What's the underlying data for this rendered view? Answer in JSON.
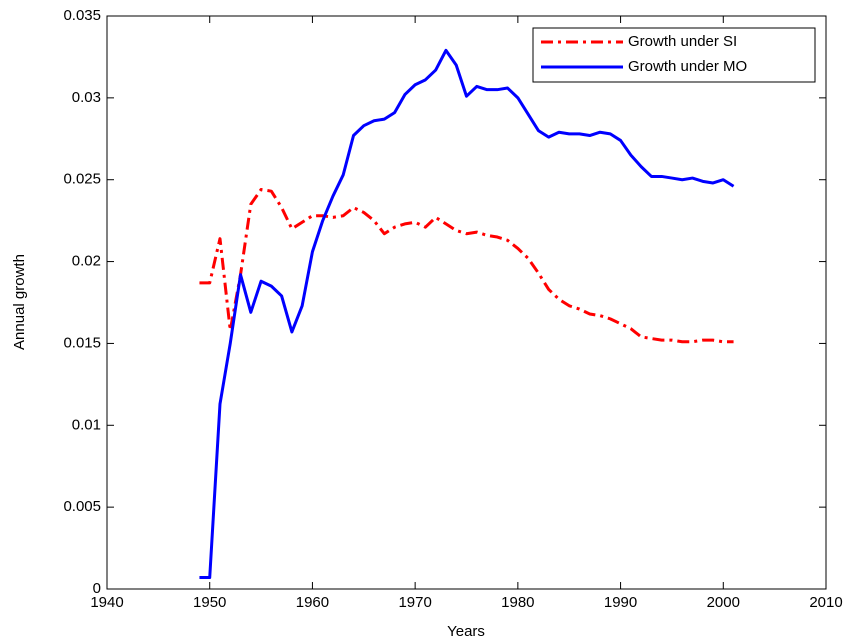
{
  "chart_data": {
    "type": "line",
    "xlabel": "Years",
    "ylabel": "Annual growth",
    "x": [
      1949,
      1950,
      1951,
      1952,
      1953,
      1954,
      1955,
      1956,
      1957,
      1958,
      1959,
      1960,
      1961,
      1962,
      1963,
      1964,
      1965,
      1966,
      1967,
      1968,
      1969,
      1970,
      1971,
      1972,
      1973,
      1974,
      1975,
      1976,
      1977,
      1978,
      1979,
      1980,
      1981,
      1982,
      1983,
      1984,
      1985,
      1986,
      1987,
      1988,
      1989,
      1990,
      1991,
      1992,
      1993,
      1994,
      1995,
      1996,
      1997,
      1998,
      1999,
      2000,
      2001
    ],
    "series": [
      {
        "name": "Growth under SI",
        "color": "#ff0000",
        "line_style": "dashdot",
        "values": [
          0.0187,
          0.0187,
          0.0214,
          0.0158,
          0.0192,
          0.0235,
          0.0244,
          0.0243,
          0.0233,
          0.022,
          0.0224,
          0.0228,
          0.0228,
          0.0227,
          0.0228,
          0.0233,
          0.023,
          0.0225,
          0.0217,
          0.0221,
          0.0223,
          0.0224,
          0.0221,
          0.0227,
          0.0223,
          0.0219,
          0.0217,
          0.0218,
          0.0216,
          0.0215,
          0.0213,
          0.0208,
          0.0202,
          0.0193,
          0.0183,
          0.0177,
          0.0173,
          0.0171,
          0.0168,
          0.0167,
          0.0165,
          0.0162,
          0.0159,
          0.0154,
          0.0153,
          0.0152,
          0.0152,
          0.0151,
          0.0151,
          0.0152,
          0.0152,
          0.0151,
          0.0151
        ]
      },
      {
        "name": "Growth under MO",
        "color": "#0000ff",
        "line_style": "solid",
        "values": [
          0.0007,
          0.0007,
          0.0113,
          0.015,
          0.0192,
          0.0169,
          0.0188,
          0.0185,
          0.0179,
          0.0157,
          0.0173,
          0.0206,
          0.0225,
          0.024,
          0.0253,
          0.0277,
          0.0283,
          0.0286,
          0.0287,
          0.0291,
          0.0302,
          0.0308,
          0.0311,
          0.0317,
          0.0329,
          0.032,
          0.0301,
          0.0307,
          0.0305,
          0.0305,
          0.0306,
          0.03,
          0.029,
          0.028,
          0.0276,
          0.0279,
          0.0278,
          0.0278,
          0.0277,
          0.0279,
          0.0278,
          0.0274,
          0.0265,
          0.0258,
          0.0252,
          0.0252,
          0.0251,
          0.025,
          0.0251,
          0.0249,
          0.0248,
          0.025,
          0.0246
        ]
      }
    ],
    "xlim": [
      1940,
      2010
    ],
    "xticks": [
      1940,
      1950,
      1960,
      1970,
      1980,
      1990,
      2000,
      2010
    ],
    "ylim": [
      0,
      0.035
    ],
    "yticks": [
      0,
      0.005,
      0.01,
      0.015,
      0.02,
      0.025,
      0.03,
      0.035
    ],
    "grid": false,
    "legend": "northeast"
  }
}
